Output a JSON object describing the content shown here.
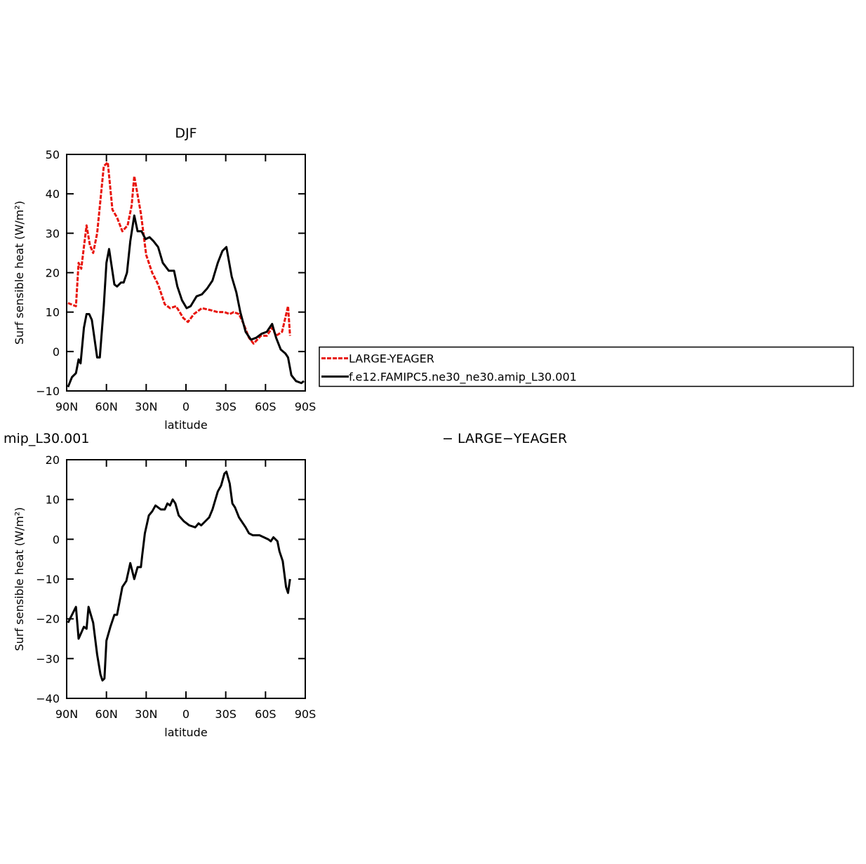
{
  "chart_data": [
    {
      "type": "line",
      "title": "DJF",
      "xlabel": "latitude",
      "ylabel": "Surf sensible heat (W/m²)",
      "xlim": [
        90,
        -90
      ],
      "xticks": [
        {
          "value": 90,
          "label": "90N"
        },
        {
          "value": 60,
          "label": "60N"
        },
        {
          "value": 30,
          "label": "30N"
        },
        0,
        {
          "value": -30,
          "label": "30S"
        },
        {
          "value": -60,
          "label": "60S"
        },
        {
          "value": -90,
          "label": "90S"
        }
      ],
      "ylim": [
        -10,
        50
      ],
      "yticks": [
        {
          "value": -10,
          "label": "−10"
        },
        0,
        10,
        20,
        30,
        40,
        50
      ],
      "legend_position": "right",
      "series": [
        {
          "name": "LARGE-YEAGER",
          "color": "#e8140c",
          "line_style": "dashed",
          "x": [
            89,
            83,
            81,
            79,
            75,
            72.5,
            70,
            67,
            62,
            59,
            55.5,
            52,
            48,
            44,
            41,
            39,
            34,
            30,
            25.5,
            21,
            16,
            12,
            7.5,
            2,
            -1.5,
            -6,
            -12,
            -18.5,
            -24,
            -29,
            -33,
            -36,
            -40,
            -43.5,
            -47.5,
            -51,
            -56.5,
            -61,
            -65,
            -68,
            -72.5,
            -77,
            -78.5
          ],
          "values": [
            12.3,
            11.5,
            22.5,
            21,
            32,
            27,
            25,
            30,
            47,
            48,
            36,
            34,
            30.5,
            32,
            37,
            44.5,
            35,
            24.5,
            20,
            17,
            12,
            11,
            11.5,
            8.5,
            7.5,
            9.5,
            11,
            10.5,
            10,
            10,
            9.5,
            10,
            9.5,
            7,
            3.5,
            2,
            4,
            4,
            6,
            4,
            5,
            11.5,
            4
          ]
        },
        {
          "name": "f.e12.FAMIPC5.ne30_ne30.amip_L30.001",
          "color": "#000000",
          "line_style": "solid",
          "x": [
            89,
            86,
            83,
            81,
            79.5,
            77,
            75,
            73,
            71,
            67,
            65,
            62,
            60,
            58,
            54,
            52,
            49,
            47,
            44.5,
            42,
            39,
            36.5,
            33.5,
            30.5,
            27.5,
            24.5,
            21,
            17.5,
            13,
            9,
            6.5,
            3,
            -0.5,
            -3.5,
            -8,
            -12,
            -16,
            -20,
            -24,
            -27.5,
            -30.5,
            -34.5,
            -38,
            -41,
            -45,
            -49,
            -53,
            -57,
            -61,
            -65,
            -68,
            -71.5,
            -75,
            -77,
            -79.5,
            -83,
            -87,
            -89
          ],
          "values": [
            -9,
            -6.5,
            -5.5,
            -2,
            -3,
            6,
            9.5,
            9.5,
            8,
            -1.5,
            -1.5,
            11.5,
            22.5,
            26,
            17,
            16.5,
            17.5,
            17.5,
            20,
            28,
            34.5,
            30.5,
            30.5,
            28.5,
            29,
            28,
            26.5,
            22.5,
            20.5,
            20.5,
            16.5,
            13,
            11,
            11.5,
            14,
            14.5,
            16,
            18,
            22.5,
            25.5,
            26.5,
            19,
            15,
            10,
            5,
            3,
            3.5,
            4.5,
            5,
            7,
            3.5,
            0.5,
            -0.5,
            -1.5,
            -6,
            -7.5,
            -8,
            -7.5
          ]
        }
      ]
    },
    {
      "type": "line",
      "title_left": "mip_L30.001",
      "title_right": "− LARGE−YEAGER",
      "xlabel": "latitude",
      "ylabel": "Surf sensible heat (W/m²)",
      "xlim": [
        90,
        -90
      ],
      "xticks": [
        {
          "value": 90,
          "label": "90N"
        },
        {
          "value": 60,
          "label": "60N"
        },
        {
          "value": 30,
          "label": "30N"
        },
        0,
        {
          "value": -30,
          "label": "30S"
        },
        {
          "value": -60,
          "label": "60S"
        },
        {
          "value": -90,
          "label": "90S"
        }
      ],
      "ylim": [
        -40,
        20
      ],
      "yticks": [
        {
          "value": -40,
          "label": "−40"
        },
        {
          "value": -30,
          "label": "−30"
        },
        {
          "value": -20,
          "label": "−20"
        },
        {
          "value": -10,
          "label": "−10"
        },
        0,
        10,
        20
      ],
      "series": [
        {
          "color": "#000000",
          "line_style": "solid",
          "x": [
            89,
            86,
            83,
            81,
            77,
            75,
            73.5,
            70,
            67,
            64.5,
            63,
            61.5,
            60,
            57,
            54,
            52,
            48,
            45,
            42,
            39,
            36.5,
            34,
            33,
            31,
            28,
            25.5,
            23,
            19,
            16,
            14,
            12,
            10,
            8,
            5.5,
            1.5,
            -2.5,
            -7,
            -9.5,
            -11.5,
            -16,
            -17.5,
            -20,
            -24,
            -26.5,
            -29,
            -30.5,
            -33,
            -35,
            -37,
            -40,
            -45,
            -47.5,
            -50.5,
            -55.5,
            -62,
            -64,
            -66,
            -69,
            -70.5,
            -73,
            -75.5,
            -77,
            -78.5
          ],
          "values": [
            -21,
            -19,
            -17,
            -25,
            -22,
            -22.5,
            -17,
            -21,
            -29,
            -34,
            -35.5,
            -35,
            -25.5,
            -22,
            -19,
            -19,
            -12,
            -10.5,
            -6,
            -10,
            -7,
            -7,
            -4,
            1.5,
            6,
            7,
            8.5,
            7.5,
            7.5,
            9,
            8.5,
            10,
            9,
            6,
            4.5,
            3.5,
            3,
            4,
            3.5,
            5,
            5.5,
            7.5,
            12,
            13.5,
            16.5,
            17,
            14,
            9,
            8,
            5.5,
            3,
            1.5,
            1,
            1,
            0,
            -0.5,
            0.5,
            -0.5,
            -3,
            -5.5,
            -12,
            -13.5,
            -10
          ]
        }
      ]
    }
  ]
}
